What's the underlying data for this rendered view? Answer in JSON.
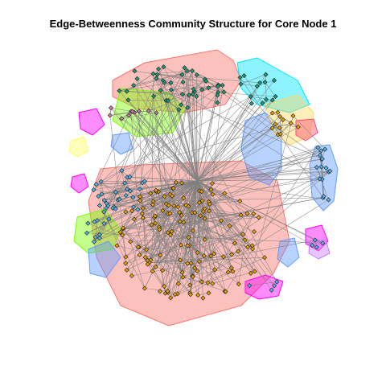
{
  "title": "Edge-Betweenness Community Structure for Core Node 1",
  "graph": {
    "edge_color": "#808080",
    "node_border_color": "#1a1a1a",
    "communities": [
      {
        "name": "orange-large",
        "hull_color": "#f8766d",
        "node_color": "#e69f00",
        "nodes": 150
      },
      {
        "name": "teal-top",
        "hull_color": "#f8766d",
        "node_color": "#1b9e77",
        "nodes": 45
      },
      {
        "name": "blue-left",
        "hull_color": "#f8766d",
        "node_color": "#56b4e9",
        "nodes": 30
      },
      {
        "name": "blue-right",
        "hull_color": "#619cff",
        "node_color": "#56b4e9",
        "nodes": 16
      },
      {
        "name": "pink-left",
        "hull_color": "#c77cff",
        "node_color": "#cc79a7",
        "nodes": 10
      },
      {
        "name": "yellow-right",
        "hull_color": "#ffd966",
        "node_color": "#e69f00",
        "nodes": 12
      },
      {
        "name": "cyan-top-right",
        "hull_color": "#00e5ff",
        "node_color": "#1b9e77",
        "nodes": 14
      },
      {
        "name": "green-left",
        "hull_color": "#7cfc00",
        "node_color": "#56b4e9",
        "nodes": 10
      },
      {
        "name": "magenta-bottom-right",
        "hull_color": "#ff00ff",
        "node_color": "#56b4e9",
        "nodes": 4
      },
      {
        "name": "magenta-bottom",
        "hull_color": "#ff00ff",
        "node_color": "#56b4e9",
        "nodes": 4
      }
    ]
  }
}
